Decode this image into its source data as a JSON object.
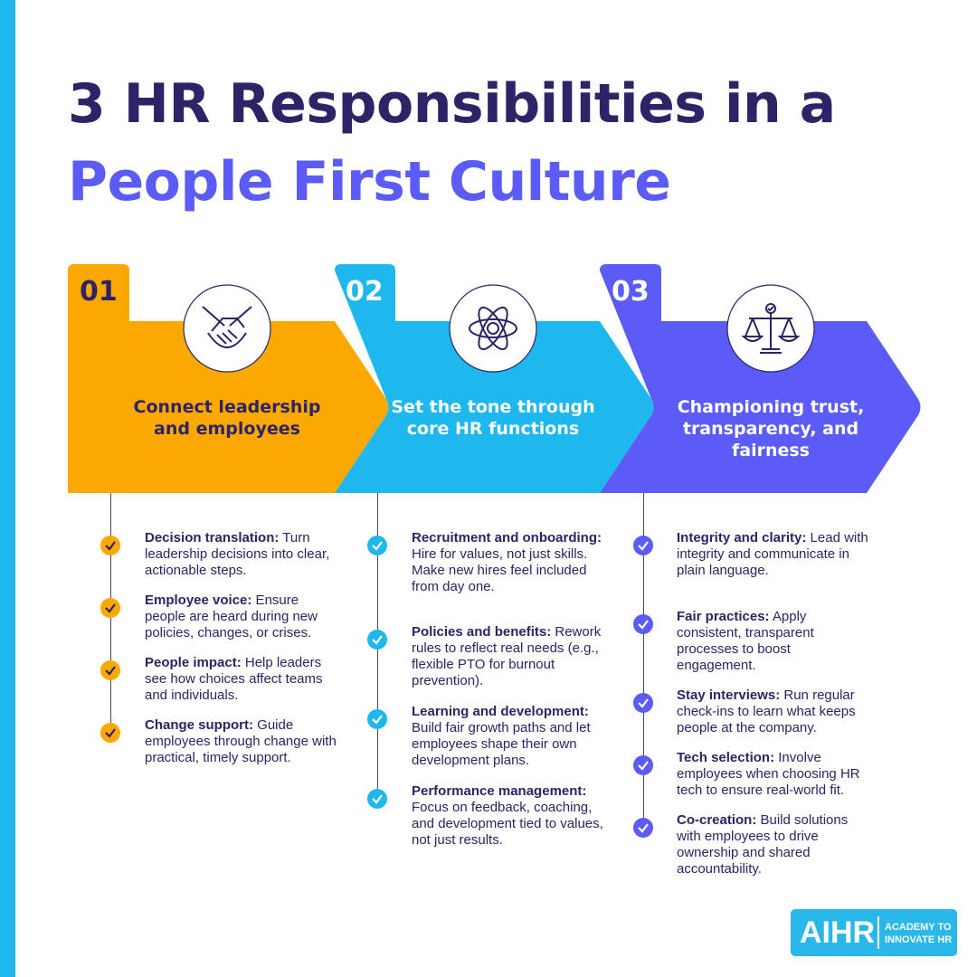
{
  "title": {
    "line1": "3 HR Responsibilities in a",
    "line2": "People First Culture"
  },
  "colors": {
    "dark": "#2d2366",
    "accent": "#5b5bf5",
    "orange": "#fba800",
    "blue": "#1fb8ee"
  },
  "steps": [
    {
      "number": "01",
      "icon": "handshake-icon",
      "heading": "Connect leadership and employees",
      "items": [
        {
          "title": "Decision translation:",
          "text": " Turn leadership decisions into clear, actionable steps."
        },
        {
          "title": "Employee voice:",
          "text": " Ensure people are heard during new policies, changes, or crises."
        },
        {
          "title": "People impact:",
          "text": " Help leaders see how choices affect teams and individuals."
        },
        {
          "title": "Change support:",
          "text": " Guide employees through change with practical, timely support."
        }
      ]
    },
    {
      "number": "02",
      "icon": "atom-icon",
      "heading": "Set the tone through core HR functions",
      "items": [
        {
          "title": "Recruitment and onboarding:",
          "text": " Hire for values, not just skills. Make new hires feel included from day one."
        },
        {
          "title": "Policies and benefits:",
          "text": " Rework rules to reflect real needs (e.g., flexible PTO for burnout prevention)."
        },
        {
          "title": "Learning and development:",
          "text": " Build fair growth paths and let employees shape their own development plans."
        },
        {
          "title": "Performance management:",
          "text": " Focus on feedback, coaching, and development tied to values, not just results."
        }
      ]
    },
    {
      "number": "03",
      "icon": "scales-icon",
      "heading": "Championing trust, transparency, and fairness",
      "items": [
        {
          "title": "Integrity and clarity:",
          "text": " Lead with integrity and communicate in plain language."
        },
        {
          "title": "Fair practices:",
          "text": " Apply consistent, transparent processes to boost engagement."
        },
        {
          "title": "Stay interviews:",
          "text": " Run regular check-ins to learn what keeps people at the company."
        },
        {
          "title": "Tech selection:",
          "text": " Involve employees when choosing HR tech to ensure real-world fit."
        },
        {
          "title": "Co-creation:",
          "text": " Build solutions with employees to drive ownership and shared accountability."
        }
      ]
    }
  ],
  "logo": {
    "mark": "AIHR",
    "tagline": "ACADEMY TO INNOVATE HR"
  }
}
